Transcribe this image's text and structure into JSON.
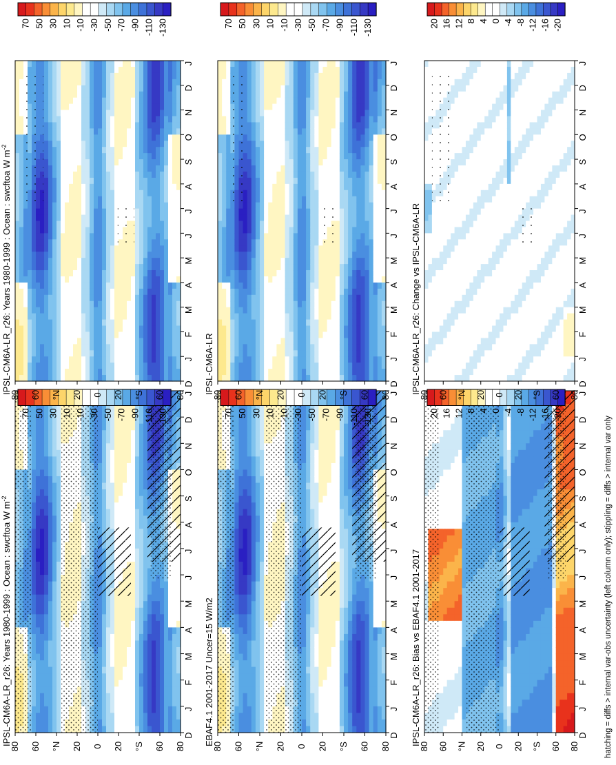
{
  "figure": {
    "footnote": "hatching = diffs > internal var-obs uncertainty (left column only); stippling = diffs > internal var only"
  },
  "colorbars": {
    "abs": {
      "labels": [
        "70",
        "50",
        "30",
        "10",
        "-10",
        "-30",
        "-50",
        "-70",
        "-90",
        "-110",
        "-130"
      ],
      "colors": [
        "#d7191c",
        "#e8321c",
        "#f4632a",
        "#f98e36",
        "#fbb44a",
        "#fdd56a",
        "#fde98e",
        "#fff6c2",
        "#ffffff",
        "#ffffff",
        "#cfe9f7",
        "#a9d8f3",
        "#80c3ee",
        "#5aa9e6",
        "#4a8ee0",
        "#3e72d8",
        "#3a56cf",
        "#3639c4",
        "#2a1fc2"
      ]
    },
    "diff": {
      "labels": [
        "20",
        "16",
        "12",
        "8",
        "4",
        "0",
        "-4",
        "-8",
        "-12",
        "-16",
        "-20"
      ],
      "colors": [
        "#d7191c",
        "#e8321c",
        "#f4632a",
        "#f98e36",
        "#fbb44a",
        "#fdd56a",
        "#fde98e",
        "#fff6c2",
        "#ffffff",
        "#ffffff",
        "#cfe9f7",
        "#a9d8f3",
        "#80c3ee",
        "#5aa9e6",
        "#4a8ee0",
        "#3e72d8",
        "#3a56cf",
        "#3639c4",
        "#2a1fc2"
      ]
    }
  },
  "axes": {
    "months": [
      "D",
      "J",
      "F",
      "M",
      "A",
      "M",
      "J",
      "J",
      "A",
      "S",
      "O",
      "N",
      "D",
      "J"
    ],
    "lats": [
      "80",
      "60",
      "°N",
      "20",
      "0",
      "20",
      "°S",
      "60",
      "80"
    ]
  },
  "chart_data": [
    {
      "type": "heatmap",
      "title": "IPSL-CM6A-LR_r26: Years 1980-1999 : Ocean : swcftoa W m",
      "title_sup": "-2",
      "x": [
        "D",
        "J",
        "F",
        "M",
        "A",
        "M",
        "J",
        "J",
        "A",
        "S",
        "O",
        "N",
        "D",
        "J"
      ],
      "y": [
        "80N",
        "60N",
        "40N",
        "20N",
        "0",
        "20S",
        "40S",
        "60S",
        "80S"
      ],
      "colorbar": "abs",
      "overlay": "hatching + stippling"
    },
    {
      "type": "heatmap",
      "title": "EBAF4.1 2001-2017 Uncer=15 W/m2",
      "x": [
        "D",
        "J",
        "F",
        "M",
        "A",
        "M",
        "J",
        "J",
        "A",
        "S",
        "O",
        "N",
        "D",
        "J"
      ],
      "y": [
        "80N",
        "60N",
        "40N",
        "20N",
        "0",
        "20S",
        "40S",
        "60S",
        "80S"
      ],
      "colorbar": "abs",
      "overlay": "hatching + stippling"
    },
    {
      "type": "heatmap",
      "title": "IPSL-CM6A-LR_r26: Bias vs EBAF4.1 2001-2017",
      "x": [
        "D",
        "J",
        "F",
        "M",
        "A",
        "M",
        "J",
        "J",
        "A",
        "S",
        "O",
        "N",
        "D",
        "J"
      ],
      "y": [
        "80N",
        "60N",
        "40N",
        "20N",
        "0",
        "20S",
        "40S",
        "60S",
        "80S"
      ],
      "colorbar": "diff",
      "overlay": "hatching + stippling"
    },
    {
      "type": "heatmap",
      "title": "IPSL-CM6A-LR_r26: Years 1980-1999 : Ocean : swcftoa W m",
      "title_sup": "-2",
      "x": [
        "D",
        "J",
        "F",
        "M",
        "A",
        "M",
        "J",
        "J",
        "A",
        "S",
        "O",
        "N",
        "D",
        "J"
      ],
      "y": [
        "80N",
        "60N",
        "40N",
        "20N",
        "0",
        "20S",
        "40S",
        "60S",
        "80S"
      ],
      "colorbar": "abs",
      "overlay": "stippling"
    },
    {
      "type": "heatmap",
      "title": "IPSL-CM6A-LR",
      "x": [
        "D",
        "J",
        "F",
        "M",
        "A",
        "M",
        "J",
        "J",
        "A",
        "S",
        "O",
        "N",
        "D",
        "J"
      ],
      "y": [
        "80N",
        "60N",
        "40N",
        "20N",
        "0",
        "20S",
        "40S",
        "60S",
        "80S"
      ],
      "colorbar": "abs",
      "overlay": "stippling"
    },
    {
      "type": "heatmap",
      "title": "IPSL-CM6A-LR_r26: Change vs IPSL-CM6A-LR",
      "x": [
        "D",
        "J",
        "F",
        "M",
        "A",
        "M",
        "J",
        "J",
        "A",
        "S",
        "O",
        "N",
        "D",
        "J"
      ],
      "y": [
        "80N",
        "60N",
        "40N",
        "20N",
        "0",
        "20S",
        "40S",
        "60S",
        "80S"
      ],
      "colorbar": "diff",
      "overlay": "stippling"
    }
  ]
}
